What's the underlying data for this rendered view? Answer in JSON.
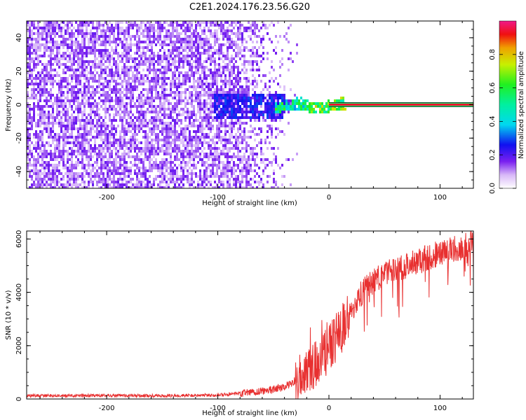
{
  "figure": {
    "title": "C2E1.2024.176.23.56.G20"
  },
  "chart_data": [
    {
      "type": "heatmap",
      "xlabel": "Height of straight line (km)",
      "ylabel": "Frequency (Hz)",
      "xlim": [
        -272,
        130
      ],
      "ylim": [
        -50,
        50
      ],
      "xticks": [
        -200,
        -100,
        0,
        100
      ],
      "yticks": [
        -40,
        -20,
        0,
        20,
        40
      ],
      "description_of_field": [
        {
          "x_range": [
            -272,
            -90
          ],
          "level": 0.12,
          "note": "broadband noise across all frequencies"
        },
        {
          "x_range": [
            -90,
            -40
          ],
          "level": 0.08,
          "note": "fading noise"
        },
        {
          "x_range": [
            -105,
            -40
          ],
          "freq_band": [
            -8,
            8
          ],
          "level": 0.25
        },
        {
          "x_range": [
            -50,
            15
          ],
          "freq_band": [
            -4,
            4
          ],
          "level": 0.5
        },
        {
          "x_range": [
            0,
            130
          ],
          "freq_band": [
            -1.5,
            1.5
          ],
          "level": 1.0,
          "note": "carrier line"
        }
      ],
      "colorbar": {
        "label": "Normalized spectral amplitude",
        "ticks": [
          0.0,
          0.2,
          0.4,
          0.6,
          0.8
        ],
        "range": [
          0,
          1
        ]
      }
    },
    {
      "type": "line",
      "xlabel": "Height of straight line (km)",
      "ylabel": "SNR (10 * v/v)",
      "xlim": [
        -272,
        130
      ],
      "ylim": [
        0,
        6300
      ],
      "xticks": [
        -200,
        -100,
        0,
        100
      ],
      "yticks": [
        0,
        2000,
        4000,
        6000
      ],
      "color": "#e83030",
      "series": [
        {
          "x": [
            -272,
            -200,
            -150,
            -100,
            -80,
            -60,
            -40,
            -30,
            -20,
            -10,
            0,
            10,
            20,
            30,
            40,
            50,
            60,
            70,
            80,
            90,
            100,
            110,
            120,
            130
          ],
          "values": [
            120,
            130,
            120,
            150,
            200,
            300,
            450,
            700,
            1000,
            1400,
            1900,
            2500,
            3300,
            4000,
            4400,
            4700,
            4850,
            5000,
            5200,
            5300,
            5500,
            5600,
            5700,
            5900
          ]
        }
      ]
    }
  ]
}
